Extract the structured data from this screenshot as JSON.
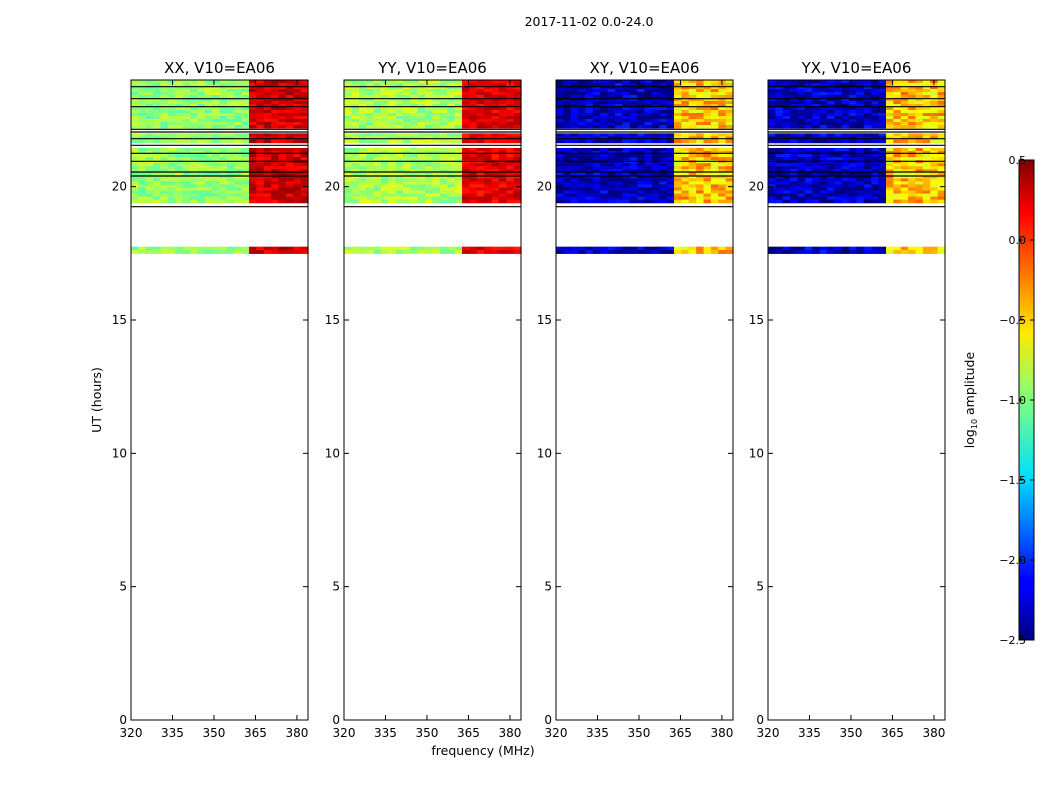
{
  "figure": {
    "suptitle": "2017-11-02 0.0-24.0",
    "xlabel": "frequency (MHz)",
    "ylabel": "UT (hours)"
  },
  "chart_data": {
    "type": "heatmap",
    "title": "2017-11-02 0.0-24.0",
    "xlabel": "frequency (MHz)",
    "ylabel": "UT (hours)",
    "xlim": [
      320,
      384
    ],
    "ylim": [
      0,
      24
    ],
    "x_ticks": [
      320,
      335,
      350,
      365,
      380
    ],
    "y_ticks": [
      0,
      5,
      10,
      15,
      20
    ],
    "panels": [
      {
        "title": "XX, V10=EA06",
        "level_low": 0.52,
        "level_high": 0.92,
        "noise": 0.06
      },
      {
        "title": "YY, V10=EA06",
        "level_low": 0.54,
        "level_high": 0.9,
        "noise": 0.06
      },
      {
        "title": "XY, V10=EA06",
        "level_low": 0.06,
        "level_high": 0.68,
        "noise": 0.1
      },
      {
        "title": "YX, V10=EA06",
        "level_low": 0.06,
        "level_high": 0.68,
        "noise": 0.1
      }
    ],
    "data_bands_hours": [
      [
        17.5,
        17.75
      ],
      [
        19.4,
        21.45
      ],
      [
        21.65,
        22.0
      ],
      [
        22.2,
        24.0
      ]
    ],
    "gap_lines_hours": [
      19.25,
      20.4,
      20.55,
      20.95,
      21.25,
      21.55,
      21.8,
      22.05,
      22.15,
      23.0,
      23.3,
      23.75
    ],
    "bright_freq_mhz": 363,
    "colorbar": {
      "label": "log10 amplitude",
      "label_main": "log",
      "label_sub": "10",
      "label_rest": " amplitude",
      "min": -2.5,
      "max": 0.5,
      "ticks": [
        {
          "value": 0.5,
          "label": "0.5"
        },
        {
          "value": 0.0,
          "label": "0.0"
        },
        {
          "value": -0.5,
          "label": "−0.5"
        },
        {
          "value": -1.0,
          "label": "−1.0"
        },
        {
          "value": -1.5,
          "label": "−1.5"
        },
        {
          "value": -2.0,
          "label": "−2.0"
        },
        {
          "value": -2.5,
          "label": "−2.5"
        }
      ],
      "colormap": "jet"
    }
  }
}
